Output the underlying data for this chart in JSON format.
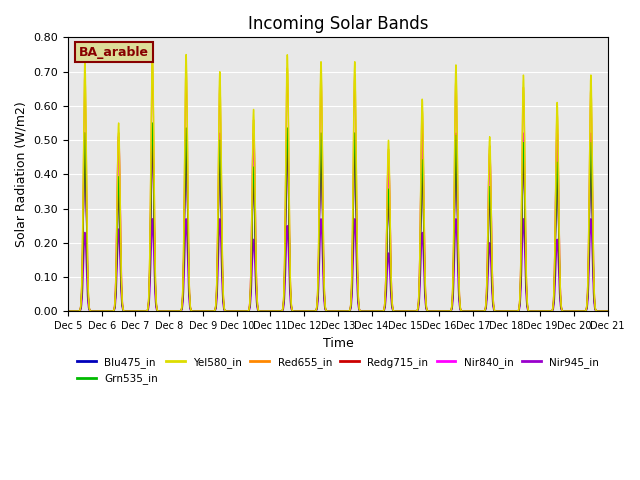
{
  "title": "Incoming Solar Bands",
  "xlabel": "Time",
  "ylabel": "Solar Radiation (W/m2)",
  "ylim": [
    0.0,
    0.8
  ],
  "yticks": [
    0.0,
    0.1,
    0.2,
    0.3,
    0.4,
    0.5,
    0.6,
    0.7,
    0.8
  ],
  "start_day": 5,
  "end_day": 20,
  "n_days": 16,
  "legend_label": "BA_arable",
  "series": [
    {
      "name": "Blu475_in",
      "color": "#0000bb",
      "lw": 1.0
    },
    {
      "name": "Grn535_in",
      "color": "#00bb00",
      "lw": 1.0
    },
    {
      "name": "Yel580_in",
      "color": "#dddd00",
      "lw": 1.0
    },
    {
      "name": "Red655_in",
      "color": "#ff8800",
      "lw": 1.0
    },
    {
      "name": "Redg715_in",
      "color": "#cc0000",
      "lw": 1.0
    },
    {
      "name": "Nir840_in",
      "color": "#ff00ff",
      "lw": 1.2
    },
    {
      "name": "Nir945_in",
      "color": "#9900cc",
      "lw": 1.2
    }
  ],
  "day_peaks_yel": [
    0.73,
    0.55,
    0.77,
    0.75,
    0.7,
    0.59,
    0.75,
    0.73,
    0.73,
    0.5,
    0.62,
    0.72,
    0.51,
    0.69,
    0.61,
    0.69
  ],
  "day_peaks_nir840": [
    0.52,
    0.51,
    0.52,
    0.52,
    0.52,
    0.52,
    0.52,
    0.52,
    0.52,
    0.44,
    0.52,
    0.52,
    0.46,
    0.52,
    0.52,
    0.52
  ],
  "day_peaks_nir945": [
    0.23,
    0.24,
    0.27,
    0.27,
    0.27,
    0.21,
    0.25,
    0.27,
    0.27,
    0.17,
    0.23,
    0.27,
    0.2,
    0.27,
    0.21,
    0.27
  ],
  "background_color": "#e8e8e8",
  "legend_box_facecolor": "#dddd99",
  "legend_box_edgecolor": "#880000",
  "legend_text_color": "#880000"
}
